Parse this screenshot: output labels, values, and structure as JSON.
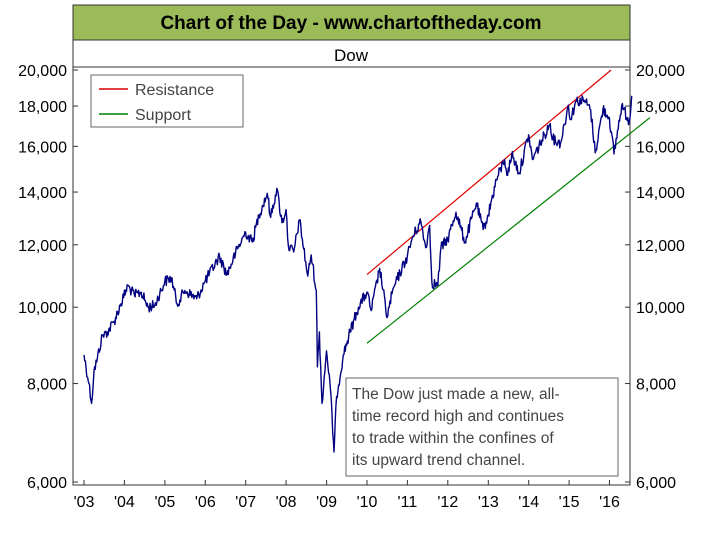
{
  "banner": {
    "text": "Chart of the Day - www.chartoftheday.com",
    "background": "#9bbb59",
    "text_color": "#000000"
  },
  "annotation": {
    "lines": [
      "The Dow just made a new, all-",
      "time record high and continues",
      "to trade within the confines of",
      "its upward trend channel."
    ]
  },
  "chart_data": {
    "type": "line",
    "title": "Dow",
    "y_scale": "log",
    "ylim": [
      6000,
      20000
    ],
    "y_ticks": [
      6000,
      8000,
      10000,
      12000,
      14000,
      16000,
      18000,
      20000
    ],
    "y_tick_labels": [
      "6,000",
      "8,000",
      "10,000",
      "12,000",
      "14,000",
      "16,000",
      "18,000",
      "20,000"
    ],
    "y_axis_sides": [
      "left",
      "right"
    ],
    "x_range": [
      "2003-01-01",
      "2017-01-01"
    ],
    "x_tick_labels": [
      {
        "label": "'03",
        "date": "2003-01-01"
      },
      {
        "label": "'04",
        "date": "2004-01-01"
      },
      {
        "label": "'05",
        "date": "2005-01-01"
      },
      {
        "label": "'06",
        "date": "2006-01-01"
      },
      {
        "label": "'07",
        "date": "2007-01-01"
      },
      {
        "label": "'08",
        "date": "2008-01-01"
      },
      {
        "label": "'09",
        "date": "2009-01-01"
      },
      {
        "label": "'10",
        "date": "2010-01-01"
      },
      {
        "label": "'11",
        "date": "2011-01-01"
      },
      {
        "label": "'12",
        "date": "2012-01-01"
      },
      {
        "label": "'13",
        "date": "2013-01-01"
      },
      {
        "label": "'14",
        "date": "2014-01-01"
      },
      {
        "label": "'15",
        "date": "2015-01-01"
      },
      {
        "label": "'16",
        "date": "2016-01-01"
      }
    ],
    "grid": false,
    "legend": {
      "position": "top-left",
      "entries": [
        {
          "label": "Resistance",
          "color": "#e00000"
        },
        {
          "label": "Support",
          "color": "#008000"
        }
      ]
    },
    "series": [
      {
        "color": "#000080",
        "points": [
          [
            "2003-01-01",
            8700
          ],
          [
            "2003-02-15",
            8000
          ],
          [
            "2003-03-11",
            7550
          ],
          [
            "2003-04-01",
            8300
          ],
          [
            "2003-05-01",
            8600
          ],
          [
            "2003-06-15",
            9200
          ],
          [
            "2003-08-01",
            9300
          ],
          [
            "2003-10-01",
            9600
          ],
          [
            "2003-12-01",
            10100
          ],
          [
            "2004-02-01",
            10650
          ],
          [
            "2004-04-01",
            10350
          ],
          [
            "2004-06-01",
            10450
          ],
          [
            "2004-08-01",
            10000
          ],
          [
            "2004-10-01",
            10050
          ],
          [
            "2004-12-31",
            10780
          ],
          [
            "2005-03-01",
            10900
          ],
          [
            "2005-04-20",
            10100
          ],
          [
            "2005-07-01",
            10500
          ],
          [
            "2005-10-15",
            10250
          ],
          [
            "2006-01-01",
            10800
          ],
          [
            "2006-05-10",
            11600
          ],
          [
            "2006-07-15",
            11000
          ],
          [
            "2006-10-01",
            11700
          ],
          [
            "2006-12-31",
            12450
          ],
          [
            "2007-03-01",
            12100
          ],
          [
            "2007-05-01",
            13100
          ],
          [
            "2007-07-15",
            13950
          ],
          [
            "2007-08-15",
            13000
          ],
          [
            "2007-10-09",
            14150
          ],
          [
            "2007-11-25",
            12800
          ],
          [
            "2007-12-31",
            13300
          ],
          [
            "2008-01-22",
            11950
          ],
          [
            "2008-03-10",
            11750
          ],
          [
            "2008-05-01",
            12900
          ],
          [
            "2008-07-15",
            10950
          ],
          [
            "2008-08-15",
            11650
          ],
          [
            "2008-09-30",
            10500
          ],
          [
            "2008-10-10",
            8400
          ],
          [
            "2008-10-28",
            9300
          ],
          [
            "2008-11-20",
            7550
          ],
          [
            "2008-12-31",
            8800
          ],
          [
            "2009-02-01",
            8000
          ],
          [
            "2009-03-09",
            6550
          ],
          [
            "2009-04-01",
            7700
          ],
          [
            "2009-06-01",
            8700
          ],
          [
            "2009-08-01",
            9300
          ],
          [
            "2009-10-15",
            10000
          ],
          [
            "2010-01-01",
            10450
          ],
          [
            "2010-02-08",
            9900
          ],
          [
            "2010-04-26",
            11200
          ],
          [
            "2010-07-02",
            9700
          ],
          [
            "2010-08-15",
            10400
          ],
          [
            "2010-10-01",
            10850
          ],
          [
            "2010-12-31",
            11600
          ],
          [
            "2011-02-15",
            12250
          ],
          [
            "2011-05-02",
            12850
          ],
          [
            "2011-06-15",
            11900
          ],
          [
            "2011-07-21",
            12700
          ],
          [
            "2011-08-10",
            10750
          ],
          [
            "2011-10-03",
            10650
          ],
          [
            "2011-10-31",
            11900
          ],
          [
            "2011-12-31",
            12200
          ],
          [
            "2012-03-15",
            13200
          ],
          [
            "2012-06-04",
            12100
          ],
          [
            "2012-09-15",
            13550
          ],
          [
            "2012-11-15",
            12550
          ],
          [
            "2012-12-31",
            13100
          ],
          [
            "2013-03-15",
            14500
          ],
          [
            "2013-05-28",
            15400
          ],
          [
            "2013-06-24",
            14700
          ],
          [
            "2013-08-01",
            15650
          ],
          [
            "2013-10-08",
            14800
          ],
          [
            "2013-12-31",
            16550
          ],
          [
            "2014-02-03",
            15400
          ],
          [
            "2014-07-15",
            17100
          ],
          [
            "2014-08-07",
            16350
          ],
          [
            "2014-10-15",
            16150
          ],
          [
            "2014-12-26",
            18050
          ],
          [
            "2015-01-15",
            17300
          ],
          [
            "2015-03-02",
            18250
          ],
          [
            "2015-05-19",
            18300
          ],
          [
            "2015-07-15",
            17800
          ],
          [
            "2015-08-25",
            15700
          ],
          [
            "2015-11-03",
            17850
          ],
          [
            "2015-12-31",
            17400
          ],
          [
            "2016-02-11",
            15650
          ],
          [
            "2016-04-20",
            18050
          ],
          [
            "2016-06-27",
            17200
          ],
          [
            "2016-07-20",
            18550
          ]
        ]
      }
    ],
    "trendlines": [
      {
        "name": "Resistance",
        "color": "#e00000",
        "from": [
          "2010-01-01",
          11000
        ],
        "to": [
          "2016-01-15",
          20000
        ]
      },
      {
        "name": "Support",
        "color": "#008000",
        "from": [
          "2010-01-01",
          9000
        ],
        "to": [
          "2016-12-31",
          17400
        ]
      }
    ]
  }
}
